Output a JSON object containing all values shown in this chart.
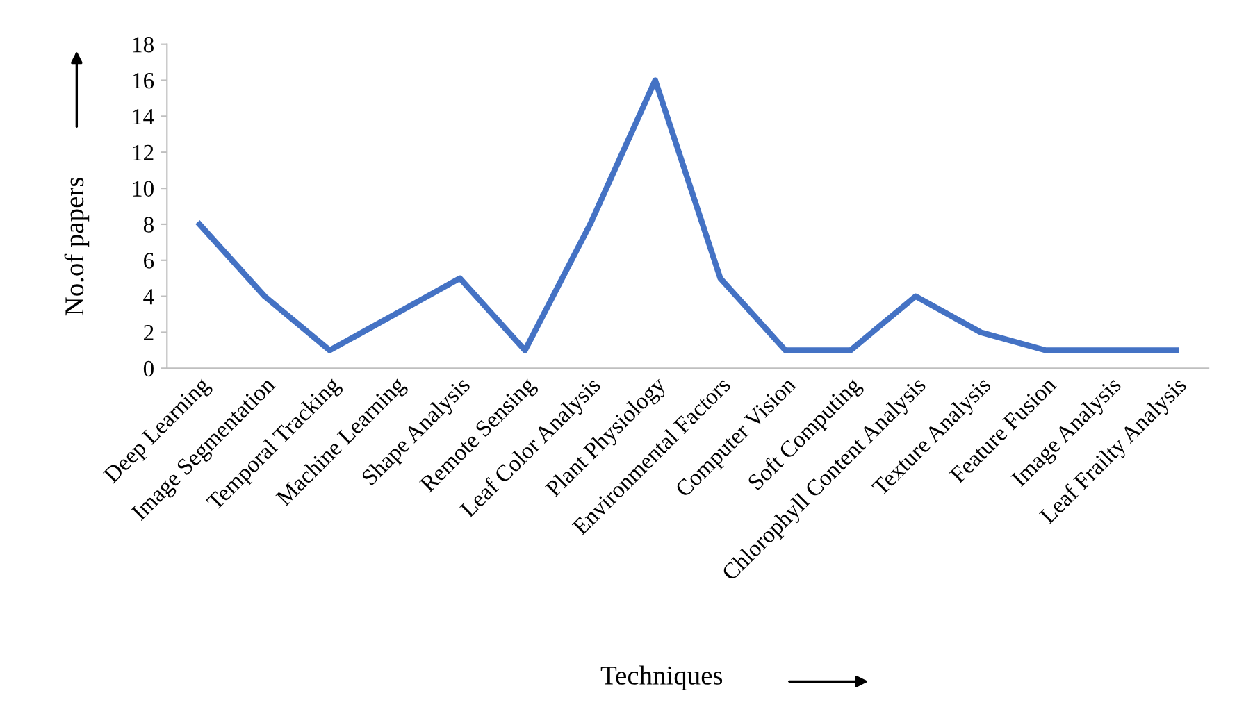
{
  "chart_data": {
    "type": "line",
    "xlabel": "Techniques",
    "ylabel": "No.of papers",
    "categories": [
      "Deep Learning",
      "Image Segmentation",
      "Temporal Tracking",
      "Machine Learning",
      "Shape Analysis",
      "Remote Sensing",
      "Leaf Color Analysis",
      "Plant Physiology",
      "Environmental Factors",
      "Computer Vision",
      "Soft Computing",
      "Chlorophyll Content Analysis",
      "Texture Analysis",
      "Feature Fusion",
      "Image Analysis",
      "Leaf Frailty Analysis"
    ],
    "series": [
      {
        "color": "#4472c4",
        "values": [
          8,
          4,
          1,
          3,
          5,
          1,
          8,
          16,
          5,
          1,
          1,
          4,
          2,
          1,
          1,
          1
        ]
      }
    ],
    "ylim": [
      0,
      18
    ],
    "yticks": [
      0,
      2,
      4,
      6,
      8,
      10,
      12,
      14,
      16,
      18
    ],
    "grid": false,
    "legend": false,
    "marker": "none",
    "line_style": "solid"
  }
}
